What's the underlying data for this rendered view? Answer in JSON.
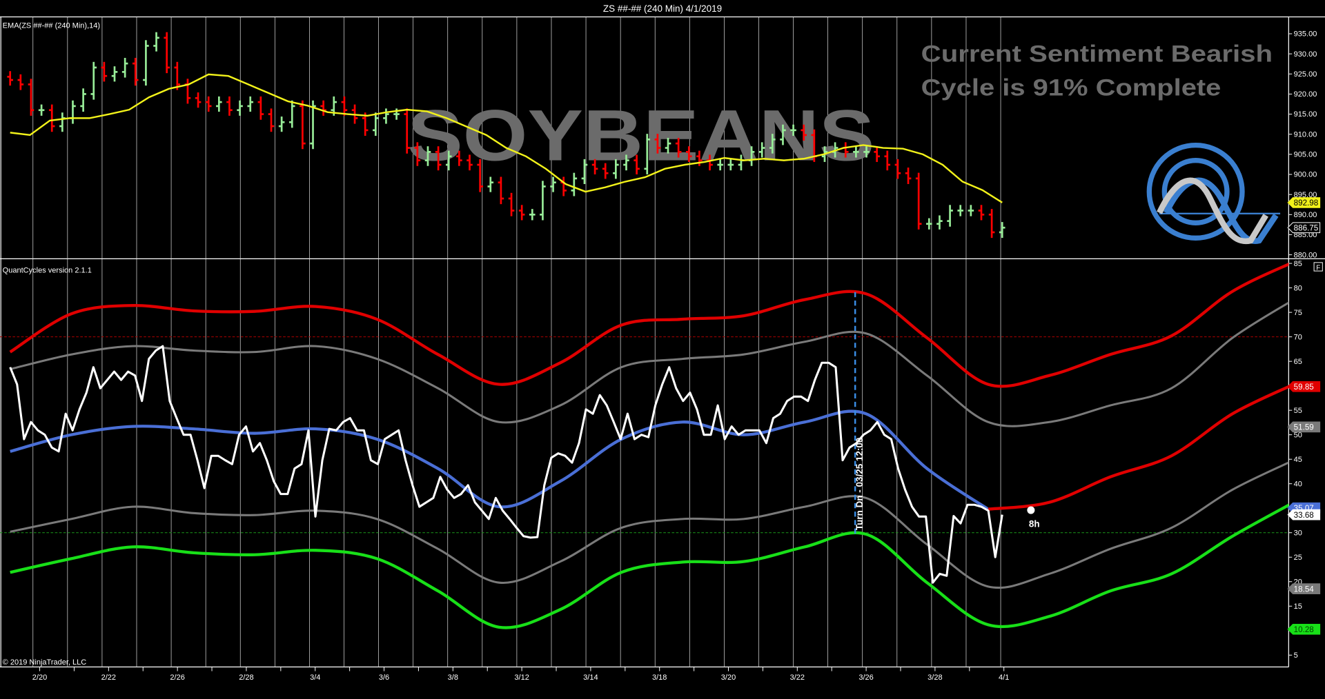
{
  "title": "ZS ##-## (240 Min)  4/1/2019",
  "watermark": "SOYBEANS",
  "sentiment": {
    "line1": "Current Sentiment Bearish",
    "line2": "Cycle is 91% Complete"
  },
  "copyright": "© 2019 NinjaTrader, LLC",
  "flag_button": "F",
  "x_axis": {
    "labels": [
      "2/20",
      "2/22",
      "2/26",
      "2/28",
      "3/4",
      "3/6",
      "3/8",
      "3/12",
      "3/14",
      "3/18",
      "3/20",
      "3/22",
      "3/26",
      "3/28",
      "4/1"
    ]
  },
  "colors": {
    "up": "#98ec98",
    "down": "#ff0000",
    "ema": "#f2f21a",
    "upper_band": "#e00000",
    "outer_band": "#7a7a7a",
    "center_band": "#4a6fd6",
    "lower_band": "#18e018",
    "oscillator": "#ffffff",
    "turn_line": "#3a8ee6"
  },
  "chart_data": [
    {
      "type": "ohlc",
      "indicator_label": "EMA(ZS ##-## (240 Min),14)",
      "ylim": [
        879,
        937
      ],
      "yticks": [
        "880.00",
        "885.00",
        "890.00",
        "895.00",
        "900.00",
        "905.00",
        "910.00",
        "915.00",
        "920.00",
        "925.00",
        "930.00",
        "935.00"
      ],
      "close": [
        923.5,
        922.4,
        916,
        916,
        912,
        914,
        917,
        920,
        926.6,
        924.5,
        925.5,
        927.6,
        923.5,
        932,
        934,
        926.6,
        922.4,
        919,
        918,
        917,
        918,
        916,
        917,
        918,
        915,
        912,
        913,
        917,
        907.7,
        917,
        916,
        918,
        916,
        914,
        911,
        914,
        915,
        915,
        906.6,
        903.5,
        905.6,
        902.4,
        904.5,
        903.5,
        902.4,
        897,
        898,
        894,
        891,
        890,
        890,
        897,
        898,
        896,
        899,
        902.4,
        901.4,
        900.3,
        902.4,
        903.5,
        901.4,
        908.7,
        906.6,
        907.7,
        905.6,
        904.5,
        903.5,
        902.4,
        902.4,
        902.4,
        903.5,
        905.6,
        906.6,
        908.7,
        911,
        911,
        909.8,
        904.5,
        905.6,
        906.6,
        905.6,
        905.6,
        905.6,
        904.5,
        902.4,
        900.3,
        899,
        887.7,
        887.7,
        888.4,
        891,
        891,
        891,
        890,
        885.6,
        886.75
      ],
      "ema": [
        910.4,
        909.8,
        913.4,
        914,
        914,
        915,
        916.1,
        919.2,
        921.3,
        922.4,
        924.9,
        924.5,
        922.4,
        920.3,
        918.2,
        917.1,
        915.5,
        915,
        914.6,
        915.5,
        916.1,
        915.7,
        914,
        911.9,
        909.8,
        906.6,
        904.5,
        901.4,
        897.6,
        895.7,
        896.8,
        898.2,
        899.3,
        901.4,
        902.4,
        903.1,
        904.1,
        903.5,
        903.9,
        903.5,
        903.9,
        905,
        906.6,
        907.3,
        906.6,
        906.4,
        905,
        902.4,
        898.2,
        896.1,
        893
      ],
      "last_price": "886.75",
      "ema_last": "892.98"
    },
    {
      "type": "line",
      "indicator_label": "QuantCycles version 2.1.1",
      "ylim": [
        2,
        86
      ],
      "yticks": [
        "5",
        "15",
        "20",
        "25",
        "30",
        "40",
        "45",
        "50",
        "55",
        "65",
        "70",
        "75",
        "80",
        "85"
      ],
      "reference_lines": [
        70,
        30
      ],
      "oscillator": [
        63.8,
        60.3,
        49.1,
        52.6,
        50.9,
        50,
        47.4,
        46.6,
        54.3,
        50.9,
        55.2,
        58.6,
        63.8,
        59.5,
        61.2,
        62.9,
        61.2,
        62.9,
        62.1,
        56.9,
        65.5,
        67.2,
        68.1,
        56.9,
        53.4,
        50,
        50,
        44.8,
        39.1,
        45.7,
        45.7,
        44.8,
        44,
        50,
        51.7,
        46.6,
        48.3,
        44.8,
        40.5,
        37.9,
        37.9,
        43.1,
        44,
        50.9,
        33.3,
        44.8,
        51.2,
        50.9,
        52.6,
        53.4,
        50.9,
        50.9,
        44.8,
        44,
        49.1,
        50,
        50.9,
        44.8,
        39.7,
        35.3,
        36.2,
        37.1,
        41.4,
        38.8,
        37.1,
        37.9,
        39.7,
        36.2,
        34.5,
        32.8,
        37.1,
        34.5,
        32.8,
        31,
        29.3,
        29,
        29.1,
        39.7,
        45.3,
        46.2,
        45.7,
        44.3,
        48.3,
        55.2,
        54.3,
        58.1,
        56,
        52.6,
        49.1,
        54.3,
        49.1,
        50,
        49.5,
        56,
        60.3,
        63.8,
        59.5,
        56.9,
        58.6,
        55.2,
        50,
        50,
        56,
        49.1,
        51.7,
        50,
        50.9,
        50.9,
        50.9,
        48.3,
        53.4,
        54.3,
        56.9,
        57.8,
        57.8,
        56.9,
        61.2,
        64.7,
        64.7,
        63.8,
        44.8,
        47.4,
        48.3,
        50,
        50.9,
        52.6,
        50,
        49.1,
        43.1,
        38.8,
        35.3,
        33.3,
        33.3,
        19.8,
        21.6,
        21.2,
        33.4,
        31.9,
        35.7,
        35.7,
        35.3,
        34.5,
        25,
        33.68
      ],
      "bands": {
        "upper": [
          66.9,
          74.7,
          76.4,
          75.3,
          75.2,
          76.2,
          73.6,
          66.4,
          60.3,
          64.7,
          72.4,
          73.6,
          74.3,
          77.6,
          78.8,
          69.8,
          60.3,
          62.1,
          66.4,
          70.2,
          79.3,
          85.3
        ],
        "upper_outer": [
          63.4,
          66.4,
          68.1,
          67.2,
          66.9,
          68.1,
          65.5,
          59.5,
          52.6,
          56,
          63.8,
          65.5,
          66.4,
          69,
          70.7,
          62.1,
          52.6,
          52.6,
          56,
          59.5,
          69.8,
          77.6
        ],
        "center": [
          46.6,
          50,
          51.7,
          51.2,
          50.3,
          51.2,
          49.1,
          43.1,
          35.3,
          40.5,
          49.1,
          52.6,
          50,
          52.6,
          54.3,
          43.1,
          34.8,
          36.2,
          41.4,
          45.7,
          54.3,
          60.3
        ],
        "lower_outer": [
          30.2,
          32.8,
          35.3,
          34,
          33.6,
          34.5,
          32.8,
          26.7,
          19.8,
          24.1,
          31,
          32.8,
          32.8,
          35.3,
          37.1,
          27.6,
          19,
          21.6,
          26.7,
          31,
          38.8,
          44.8
        ],
        "lower": [
          21.9,
          24.7,
          27.1,
          25.9,
          25.5,
          26.4,
          24.7,
          18.1,
          10.7,
          14.3,
          21.9,
          24,
          24.1,
          27.1,
          29.7,
          19.8,
          11.2,
          12.9,
          18.1,
          21.6,
          29.3,
          36.2
        ]
      },
      "value_labels": [
        {
          "text": "59.85",
          "value": 59.85,
          "color": "#e00000",
          "text_color": "#ffffff"
        },
        {
          "text": "51.59",
          "value": 51.59,
          "color": "#7a7a7a",
          "text_color": "#ffffff"
        },
        {
          "text": "35.07",
          "value": 35.07,
          "color": "#4a6fd6",
          "text_color": "#ffffff"
        },
        {
          "text": "33.68",
          "value": 33.68,
          "color": "#ffffff",
          "text_color": "#000000"
        },
        {
          "text": "18.54",
          "value": 18.54,
          "color": "#7a7a7a",
          "text_color": "#ffffff"
        },
        {
          "text": "10.28",
          "value": 10.28,
          "color": "#18e018",
          "text_color": "#004400"
        }
      ],
      "turn_annotation": "Turn Dn - 03/25  12:00",
      "projection_label": "8h"
    }
  ]
}
